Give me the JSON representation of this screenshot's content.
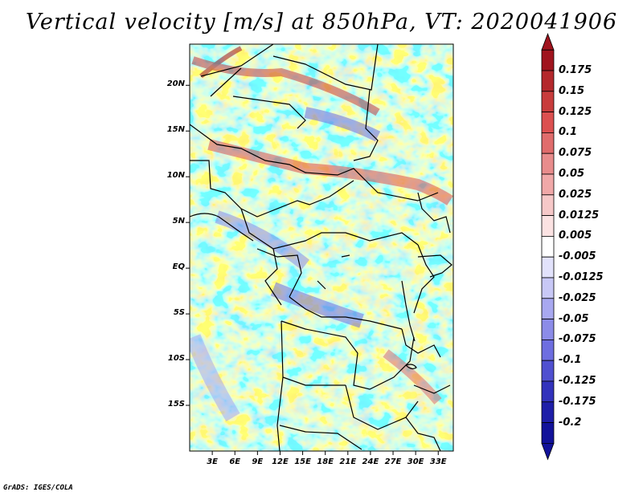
{
  "title": "Vertical velocity [m/s] at 850hPa, VT: 2020041906",
  "credit": "GrADS: IGES/COLA",
  "map": {
    "variable": "Vertical velocity",
    "units": "m/s",
    "level": "850hPa",
    "valid_time": "2020041906",
    "lon_range": [
      0,
      35
    ],
    "lat_range": [
      -20,
      24.5
    ],
    "lat_ticks": [
      {
        "value": 20,
        "label": "20N"
      },
      {
        "value": 15,
        "label": "15N"
      },
      {
        "value": 10,
        "label": "10N"
      },
      {
        "value": 5,
        "label": "5N"
      },
      {
        "value": 0,
        "label": "EQ"
      },
      {
        "value": -5,
        "label": "5S"
      },
      {
        "value": -10,
        "label": "10S"
      },
      {
        "value": -15,
        "label": "15S"
      }
    ],
    "lon_ticks": [
      {
        "value": 3,
        "label": "3E"
      },
      {
        "value": 6,
        "label": "6E"
      },
      {
        "value": 9,
        "label": "9E"
      },
      {
        "value": 12,
        "label": "12E"
      },
      {
        "value": 15,
        "label": "15E"
      },
      {
        "value": 18,
        "label": "18E"
      },
      {
        "value": 21,
        "label": "21E"
      },
      {
        "value": 24,
        "label": "24E"
      },
      {
        "value": 27,
        "label": "27E"
      },
      {
        "value": 30,
        "label": "30E"
      },
      {
        "value": 33,
        "label": "33E"
      }
    ]
  },
  "colorbar": {
    "labels": [
      "0.175",
      "0.15",
      "0.125",
      "0.1",
      "0.075",
      "0.05",
      "0.025",
      "0.0125",
      "0.005",
      "-0.005",
      "-0.0125",
      "-0.025",
      "-0.05",
      "-0.075",
      "-0.1",
      "-0.125",
      "-0.175",
      "-0.2"
    ],
    "colors": [
      "#a0141e",
      "#b4282c",
      "#c83c3c",
      "#dc5050",
      "#e06c6c",
      "#e88c8c",
      "#f0a8a8",
      "#f6c8c8",
      "#fbe2e2",
      "#ffffff",
      "#e2e2fb",
      "#c8c8f6",
      "#a8a8f0",
      "#8c8ce8",
      "#6e6ee0",
      "#5050d0",
      "#3232bc",
      "#1e1ea8",
      "#12129a"
    ],
    "top_color": "#a0141e",
    "bottom_color": "#12129a"
  }
}
